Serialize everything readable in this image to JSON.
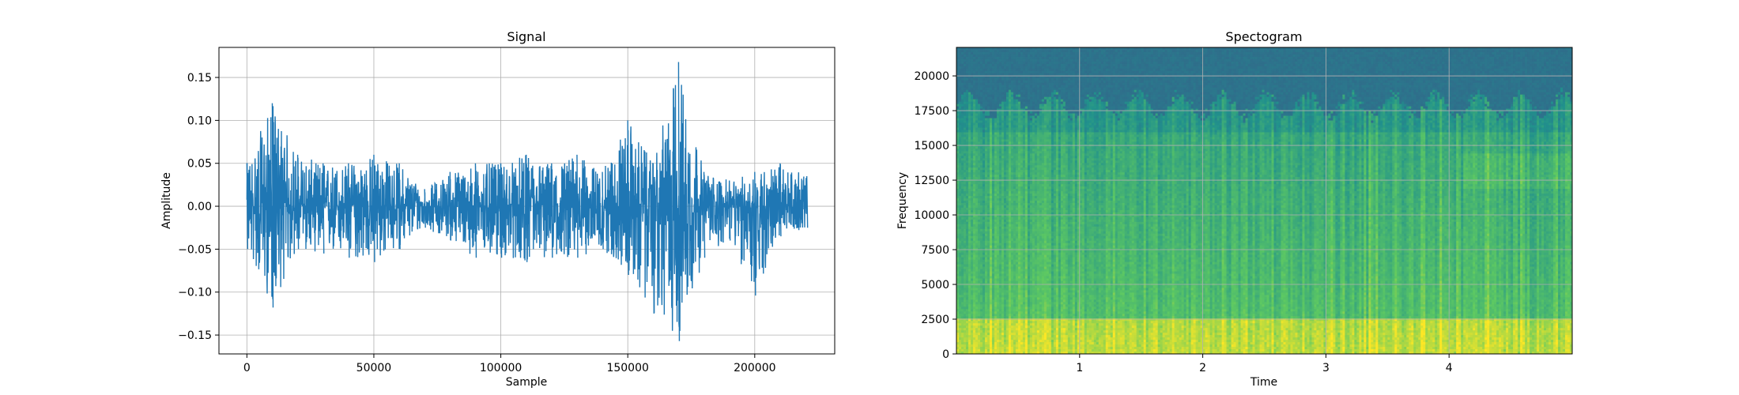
{
  "colors": {
    "signal_line": "#1f77b4",
    "grid": "#b0b0b0",
    "spectrogram_low": "#2a788e",
    "spectrogram_high": "#dde318"
  },
  "chart_data": [
    {
      "type": "line",
      "title": "Signal",
      "xlabel": "Sample",
      "ylabel": "Amplitude",
      "xlim": [
        -11000,
        231500
      ],
      "ylim": [
        -0.172,
        0.185
      ],
      "x_ticks": [
        0,
        50000,
        100000,
        150000,
        200000
      ],
      "x_tick_labels": [
        "0",
        "50000",
        "100000",
        "150000",
        "200000"
      ],
      "y_ticks": [
        -0.15,
        -0.1,
        -0.05,
        0.0,
        0.05,
        0.1,
        0.15
      ],
      "y_tick_labels": [
        "−0.15",
        "−0.10",
        "−0.05",
        "0.00",
        "0.05",
        "0.10",
        "0.15"
      ],
      "grid": true,
      "series": [
        {
          "x": [
            0,
            10000,
            20000,
            30000,
            40000,
            50000,
            60000,
            70000,
            80000,
            90000,
            100000,
            110000,
            120000,
            130000,
            140000,
            150000,
            160000,
            170000,
            180000,
            190000,
            200000,
            210000,
            220500
          ],
          "envelope_upper": [
            0.05,
            0.12,
            0.06,
            0.05,
            0.05,
            0.06,
            0.05,
            0.02,
            0.04,
            0.05,
            0.05,
            0.06,
            0.05,
            0.06,
            0.04,
            0.1,
            0.05,
            0.168,
            0.04,
            0.03,
            0.04,
            0.05,
            0.035
          ],
          "envelope_lower": [
            -0.05,
            -0.118,
            -0.05,
            -0.055,
            -0.06,
            -0.065,
            -0.05,
            -0.025,
            -0.04,
            -0.06,
            -0.06,
            -0.065,
            -0.06,
            -0.06,
            -0.05,
            -0.08,
            -0.125,
            -0.157,
            -0.06,
            -0.04,
            -0.104,
            -0.035,
            -0.025
          ]
        }
      ]
    },
    {
      "type": "heatmap",
      "title": "Spectogram",
      "xlabel": "Time",
      "ylabel": "Frequency",
      "xlim": [
        0,
        5
      ],
      "ylim": [
        0,
        22050
      ],
      "x_ticks": [
        1,
        2,
        3,
        4
      ],
      "x_tick_labels": [
        "1",
        "2",
        "3",
        "4"
      ],
      "y_ticks": [
        0,
        2500,
        5000,
        7500,
        10000,
        12500,
        15000,
        17500,
        20000
      ],
      "y_tick_labels": [
        "0",
        "2500",
        "5000",
        "7500",
        "10000",
        "12500",
        "15000",
        "17500",
        "20000"
      ],
      "grid": true,
      "colormap": "viridis",
      "cutoff_frequency": 18000
    }
  ]
}
